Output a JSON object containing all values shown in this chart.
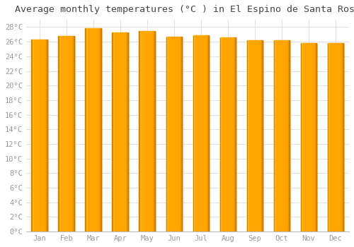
{
  "title": "Average monthly temperatures (°C ) in El Espino de Santa Rosa",
  "months": [
    "Jan",
    "Feb",
    "Mar",
    "Apr",
    "May",
    "Jun",
    "Jul",
    "Aug",
    "Sep",
    "Oct",
    "Nov",
    "Dec"
  ],
  "temperatures": [
    26.3,
    26.8,
    27.8,
    27.3,
    27.5,
    26.7,
    26.9,
    26.6,
    26.2,
    26.2,
    25.8,
    25.8
  ],
  "ylim": [
    0,
    29
  ],
  "yticks": [
    0,
    2,
    4,
    6,
    8,
    10,
    12,
    14,
    16,
    18,
    20,
    22,
    24,
    26,
    28
  ],
  "bar_color_main": "#FFA726",
  "bar_color_light": "#FFE082",
  "bar_color_dark": "#FB8C00",
  "background_color": "#ffffff",
  "grid_color": "#e0e0e0",
  "title_fontsize": 9.5,
  "tick_fontsize": 7.5,
  "tick_color": "#999999",
  "title_color": "#444444",
  "bar_width": 0.6
}
